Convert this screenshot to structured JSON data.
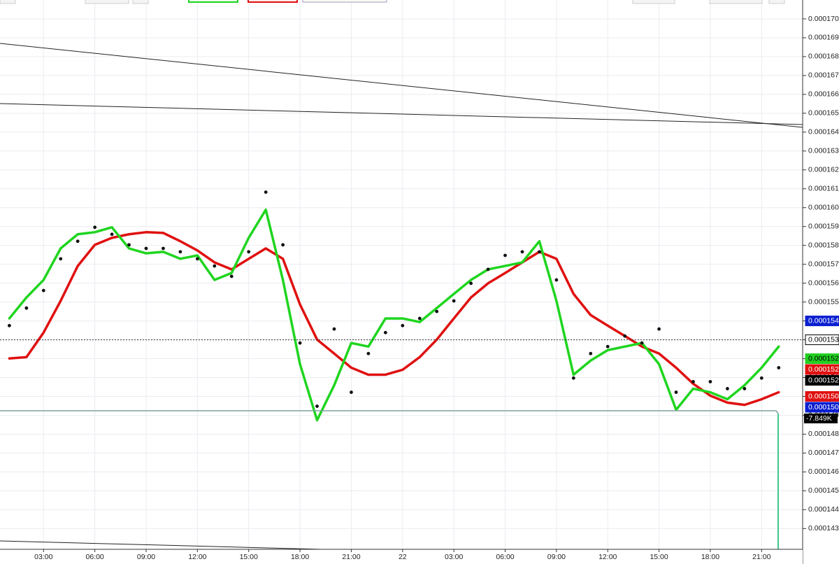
{
  "chart_data": {
    "type": "line",
    "x": [
      1,
      2,
      3,
      4,
      5,
      6,
      7,
      8,
      9,
      10,
      11,
      12,
      13,
      14,
      15,
      16,
      17,
      18,
      19,
      20,
      21,
      22,
      23,
      24,
      25,
      26,
      27,
      28,
      29,
      30,
      31,
      32,
      33,
      34,
      35,
      36,
      37,
      38,
      39,
      40,
      41,
      42,
      43,
      44,
      45,
      46
    ],
    "xlim": [
      0.453,
      47.4
    ],
    "xticks": [
      {
        "value": 3,
        "label": "03:00"
      },
      {
        "value": 6,
        "label": "06:00"
      },
      {
        "value": 9,
        "label": "09:00"
      },
      {
        "value": 12,
        "label": "12:00"
      },
      {
        "value": 15,
        "label": "15:00"
      },
      {
        "value": 18,
        "label": "18:00"
      },
      {
        "value": 21,
        "label": "21:00"
      },
      {
        "value": 24,
        "label": "22"
      },
      {
        "value": 27,
        "label": "03:00"
      },
      {
        "value": 30,
        "label": "06:00"
      },
      {
        "value": 33,
        "label": "09:00"
      },
      {
        "value": 36,
        "label": "12:00"
      },
      {
        "value": 39,
        "label": "15:00"
      },
      {
        "value": 42,
        "label": "18:00"
      },
      {
        "value": 45,
        "label": "21:00"
      }
    ],
    "ylim": [
      0.0001419,
      0.000171
    ],
    "yticks": [
      {
        "value": 0.000143,
        "label": "0.000143"
      },
      {
        "value": 0.000144,
        "label": "0.000144"
      },
      {
        "value": 0.000145,
        "label": "0.000145"
      },
      {
        "value": 0.000146,
        "label": "0.000146"
      },
      {
        "value": 0.000147,
        "label": "0.000147"
      },
      {
        "value": 0.000148,
        "label": "0.000148"
      },
      {
        "value": 0.000149,
        "label": "0.000149"
      },
      {
        "value": 0.00015,
        "label": "0.000150"
      },
      {
        "value": 0.000151,
        "label": "0.000151"
      },
      {
        "value": 0.000152,
        "label": "0.000152"
      },
      {
        "value": 0.000153,
        "label": "0.000153"
      },
      {
        "value": 0.000154,
        "label": "0.000154"
      },
      {
        "value": 0.000155,
        "label": "0.000155"
      },
      {
        "value": 0.000156,
        "label": "0.000156"
      },
      {
        "value": 0.000157,
        "label": "0.000157"
      },
      {
        "value": 0.000158,
        "label": "0.000158"
      },
      {
        "value": 0.000159,
        "label": "0.000159"
      },
      {
        "value": 0.00016,
        "label": "0.000160"
      },
      {
        "value": 0.000161,
        "label": "0.000161"
      },
      {
        "value": 0.000162,
        "label": "0.000162"
      },
      {
        "value": 0.000163,
        "label": "0.000163"
      },
      {
        "value": 0.000164,
        "label": "0.000164"
      },
      {
        "value": 0.000165,
        "label": "0.000165"
      },
      {
        "value": 0.000166,
        "label": "0.000166"
      },
      {
        "value": 0.000167,
        "label": "0.000167"
      },
      {
        "value": 0.000168,
        "label": "0.000168"
      },
      {
        "value": 0.000169,
        "label": "0.000169"
      },
      {
        "value": 0.00017,
        "label": "0.000170"
      }
    ],
    "grid": true,
    "series": [
      {
        "color": "#e01010",
        "style": "line",
        "values": [
          0.00015201,
          0.00015208,
          0.00015338,
          0.00015506,
          0.00015691,
          0.00015803,
          0.0001584,
          0.00015859,
          0.0001587,
          0.00015866,
          0.00015822,
          0.00015773,
          0.0001571,
          0.00015673,
          0.00015729,
          0.00015784,
          0.00015729,
          0.00015487,
          0.00015301,
          0.00015227,
          0.00015152,
          0.00015115,
          0.00015115,
          0.00015141,
          0.00015208,
          0.00015301,
          0.00015413,
          0.00015524,
          0.00015599,
          0.00015654,
          0.0001571,
          0.00015766,
          0.00015729,
          0.00015543,
          0.00015431,
          0.00015375,
          0.0001532,
          0.00015264,
          0.00015227,
          0.00015152,
          0.00015067,
          0.00015004,
          0.00014967,
          0.00014955,
          0.00014985,
          0.00015022
        ]
      },
      {
        "color": "#1fd51f",
        "style": "line",
        "values": [
          0.00015413,
          0.00015524,
          0.00015617,
          0.00015784,
          0.00015859,
          0.0001587,
          0.00015896,
          0.00015784,
          0.00015758,
          0.00015766,
          0.00015729,
          0.00015747,
          0.00015617,
          0.00015654,
          0.0001584,
          0.00015989,
          0.00015617,
          0.00015171,
          0.00014874,
          0.00015059,
          0.00015283,
          0.00015264,
          0.00015413,
          0.00015413,
          0.00015394,
          0.00015468,
          0.00015543,
          0.00015617,
          0.00015673,
          0.00015691,
          0.0001571,
          0.00015822,
          0.00015506,
          0.00015115,
          0.0001519,
          0.00015245,
          0.00015264,
          0.00015283,
          0.00015171,
          0.00014929,
          0.00015041,
          0.00015022,
          0.00014985,
          0.00015059,
          0.00015152,
          0.00015264
        ]
      },
      {
        "color": "#111111",
        "style": "dots",
        "values": [
          0.00015375,
          0.00015468,
          0.00015561,
          0.00015729,
          0.00015822,
          0.00015896,
          0.00015859,
          0.00015803,
          0.00015784,
          0.00015784,
          0.00015766,
          0.00015729,
          0.00015691,
          0.00015636,
          0.00015766,
          0.00016082,
          0.00015803,
          0.00015283,
          0.00014948,
          0.00015357,
          0.00015022,
          0.00015227,
          0.00015338,
          0.00015375,
          0.00015413,
          0.0001545,
          0.00015506,
          0.00015599,
          0.00015673,
          0.00015747,
          0.00015766,
          0.00015766,
          0.00015617,
          0.00015097,
          0.00015227,
          0.00015264,
          0.0001532,
          0.00015283,
          0.00015357,
          0.00015022,
          0.00015078,
          0.00015078,
          0.00015041,
          0.00015041,
          0.00015097,
          0.00015152
        ]
      }
    ],
    "price_tags": [
      {
        "value": 0.000154,
        "label": "0.000154",
        "color": "#0b1fd1",
        "text_color": "#ffffff"
      },
      {
        "value": 0.000153,
        "label": "0.000153",
        "color": "#ffffff",
        "text_color": "#000000"
      },
      {
        "value": 0.000152,
        "label": "0.000152",
        "color": "#22d022",
        "text_color": "#000000"
      },
      {
        "value": 0.000152,
        "label": "0.000152",
        "color": "#e01010",
        "text_color": "#ffffff"
      },
      {
        "value": 0.000152,
        "label": "0.000152",
        "color": "#000000",
        "text_color": "#ffffff"
      },
      {
        "value": 0.00015,
        "label": "0.000150",
        "color": "#e01010",
        "text_color": "#ffffff"
      },
      {
        "value": 0.00015,
        "label": "0.000150",
        "color": "#0b1fd1",
        "text_color": "#ffffff"
      }
    ],
    "indicator_tag": {
      "value": -7849,
      "label": "-7.849K",
      "color": "#000000",
      "text_color": "#ffffff"
    }
  }
}
